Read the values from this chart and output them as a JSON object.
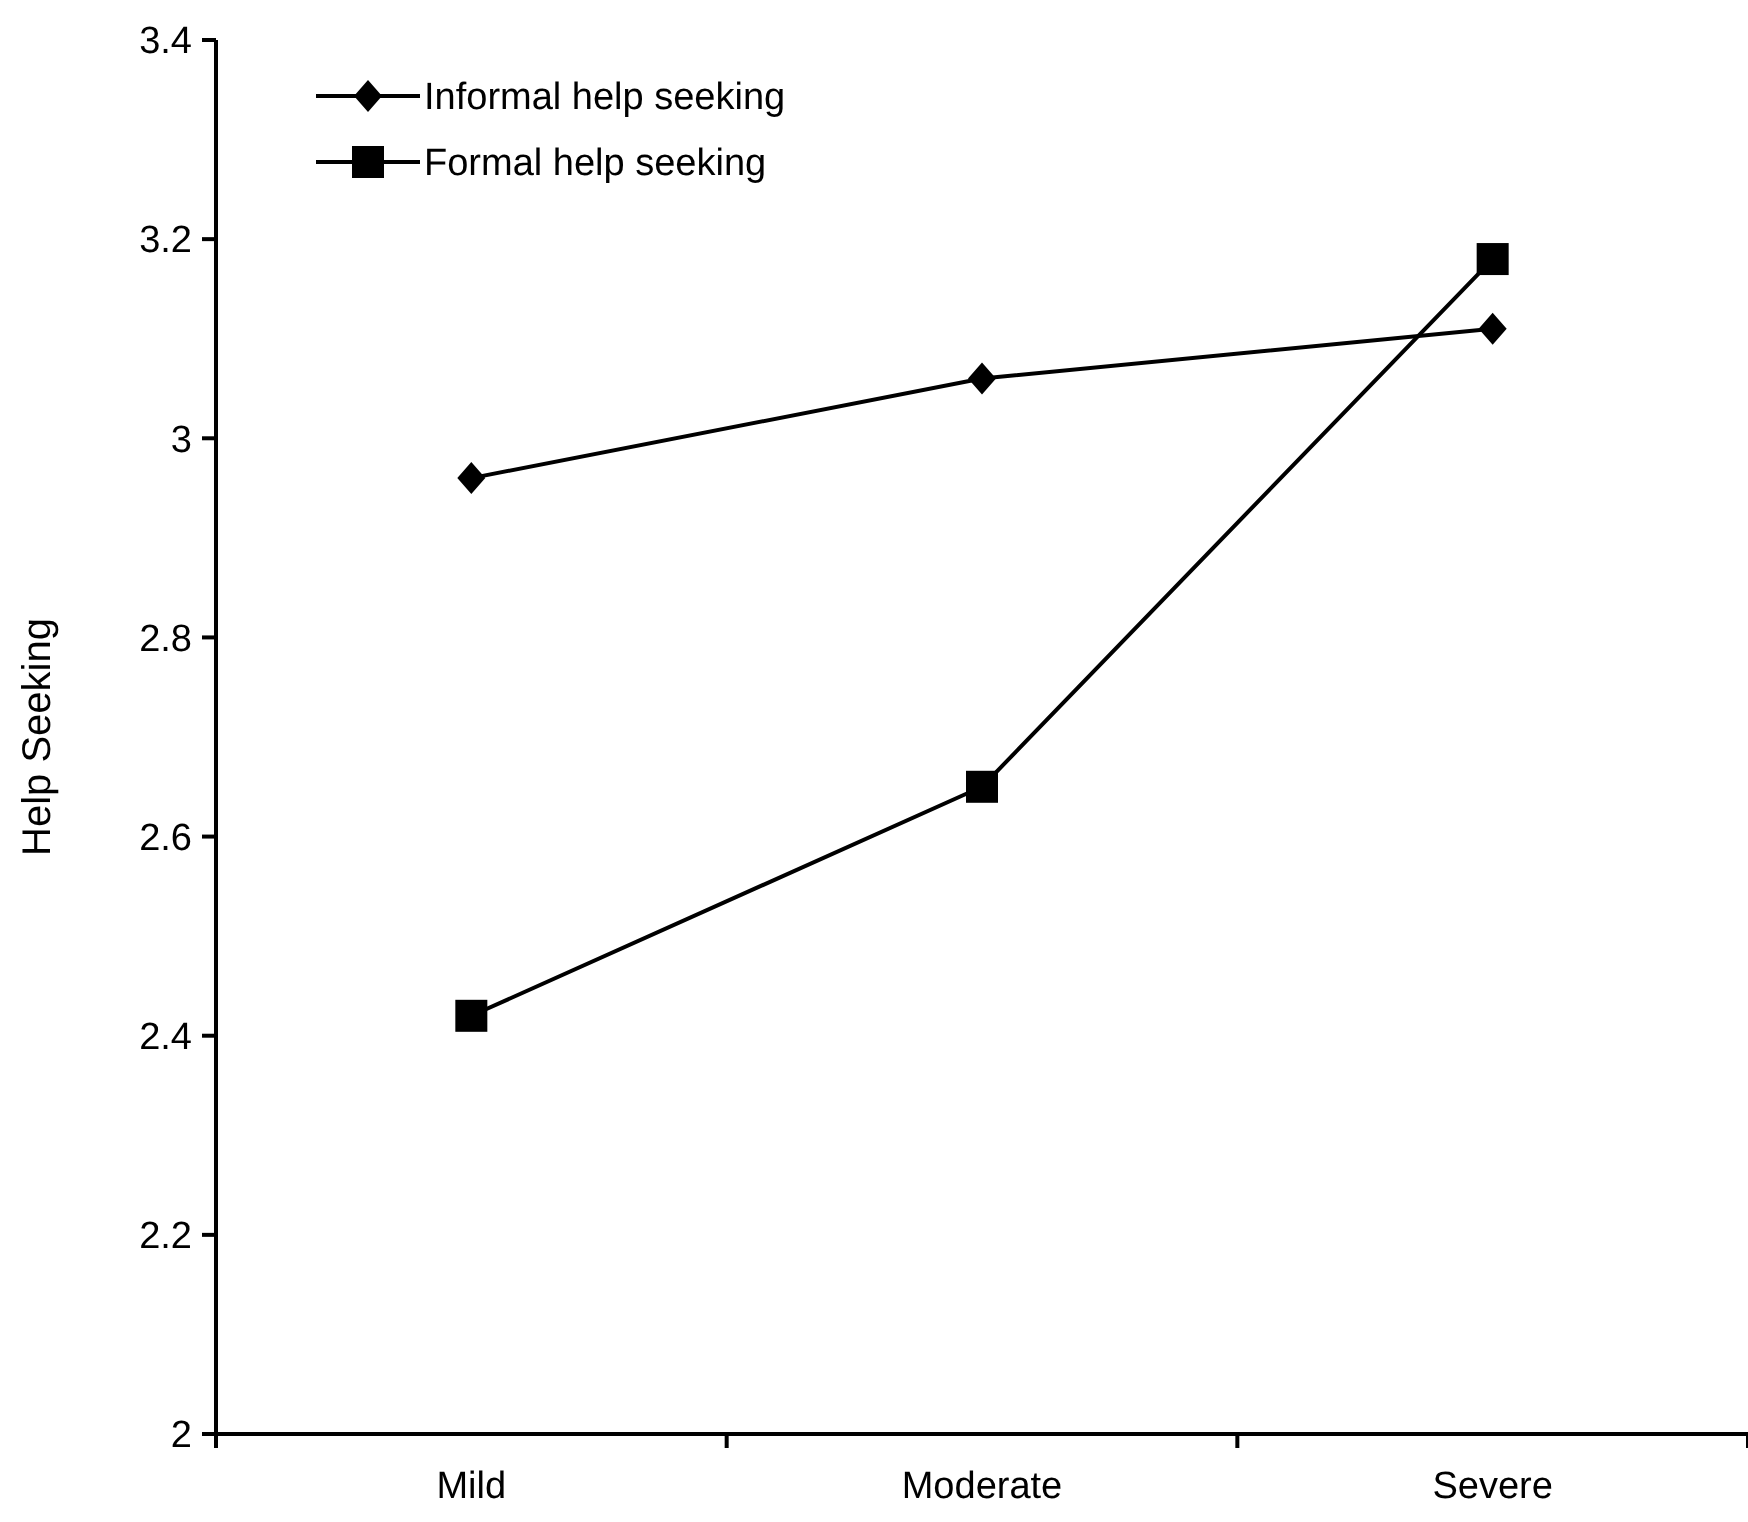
{
  "chart_data": {
    "type": "line",
    "ylabel": "Help Seeking",
    "categories": [
      "Mild",
      "Moderate",
      "Severe"
    ],
    "series": [
      {
        "name": "Informal help seeking",
        "color": "#000000",
        "values": [
          2.96,
          3.06,
          3.11
        ],
        "marker": "diamond"
      },
      {
        "name": "Formal help seeking",
        "color": "#000000",
        "values": [
          2.42,
          2.65,
          3.18
        ],
        "marker": "square"
      }
    ],
    "ylim": [
      2,
      3.4
    ],
    "yticks": [
      2,
      2.2,
      2.4,
      2.6,
      2.8,
      3,
      3.2,
      3.4
    ],
    "legend": "top left",
    "grid": false,
    "line_style": "solid"
  }
}
